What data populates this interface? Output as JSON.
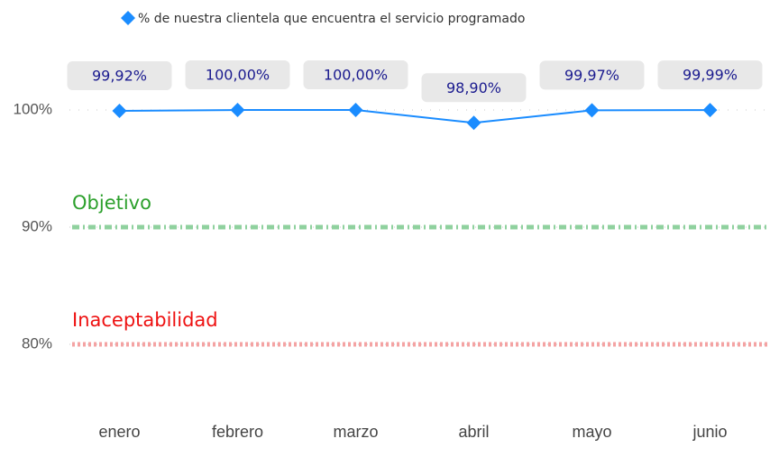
{
  "chart_data": {
    "type": "line",
    "categories": [
      "enero",
      "febrero",
      "marzo",
      "abril",
      "mayo",
      "junio"
    ],
    "series": [
      {
        "name": "% de nuestra clientela que encuentra el servicio programado",
        "color": "#1a8cff",
        "values": [
          99.92,
          100,
          100,
          98.9,
          99.97,
          99.99
        ],
        "value_labels": [
          "99,92%",
          "100,00%",
          "100,00%",
          "98,90%",
          "99,97%",
          "99,99%"
        ]
      }
    ],
    "ylim": [
      77,
      102
    ],
    "yticks": [
      {
        "value": 80,
        "label": "80%"
      },
      {
        "value": 90,
        "label": "90%"
      },
      {
        "value": 100,
        "label": "100%"
      }
    ],
    "grid": true,
    "legend": "top",
    "reference_lines": [
      {
        "label": "Objetivo",
        "value": 90,
        "color": "#8fd19e",
        "text_color": "#2ca02c",
        "style": "dashed"
      },
      {
        "label": "Inaceptabilidad",
        "value": 80,
        "color": "#f4a3a3",
        "text_color": "#ee1111",
        "style": "dotted"
      }
    ]
  }
}
